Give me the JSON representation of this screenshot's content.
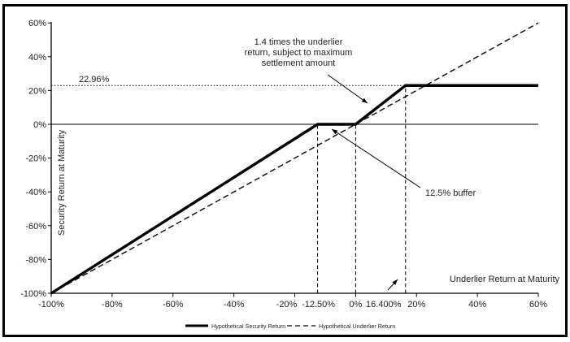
{
  "figure": {
    "background": "#ffffff",
    "border_color": "#000000",
    "line_color": "#000000",
    "text_color": "#1f1f1f"
  },
  "axes": {
    "x": {
      "title": "Underlier Return at Maturity",
      "min": -100,
      "max": 60,
      "ticks": [
        {
          "label": "-100%",
          "value": -100
        },
        {
          "label": "-80%",
          "value": -80
        },
        {
          "label": "-60%",
          "value": -60
        },
        {
          "label": "-40%",
          "value": -40
        },
        {
          "label": "-20%",
          "value": -20
        },
        {
          "label": "0%",
          "value": 0
        },
        {
          "label": "20%",
          "value": 20
        },
        {
          "label": "40%",
          "value": 40
        },
        {
          "label": "60%",
          "value": 60
        }
      ],
      "extra_labels": [
        {
          "label": "-12.50%",
          "value": -12.5
        },
        {
          "label": "16.400%",
          "value": 16.4
        }
      ]
    },
    "y": {
      "title": "Security Return at Maturity",
      "min": -100,
      "max": 60,
      "ticks": [
        {
          "label": "60%",
          "value": 60
        },
        {
          "label": "40%",
          "value": 40
        },
        {
          "label": "20%",
          "value": 20
        },
        {
          "label": "0%",
          "value": 0
        },
        {
          "label": "-20%",
          "value": -20
        },
        {
          "label": "-40%",
          "value": -40
        },
        {
          "label": "-60%",
          "value": -60
        },
        {
          "label": "-80%",
          "value": -80
        },
        {
          "label": "-100%",
          "value": -100
        }
      ]
    }
  },
  "chart_data": {
    "type": "line",
    "xlabel": "Underlier Return at Maturity",
    "ylabel": "Security Return at Maturity",
    "xlim": [
      -100,
      60
    ],
    "ylim": [
      -100,
      60
    ],
    "grid": false,
    "legend_position": "bottom-center",
    "series": [
      {
        "name": "Hypothetical Security Return",
        "style": "solid-thick",
        "points": [
          [
            -100,
            -100
          ],
          [
            -12.5,
            0
          ],
          [
            0,
            0
          ],
          [
            16.4,
            22.96
          ],
          [
            60,
            22.96
          ]
        ]
      },
      {
        "name": "Hypothetical Underlier Return",
        "style": "dashed",
        "points": [
          [
            -100,
            -100
          ],
          [
            60,
            60
          ]
        ]
      }
    ],
    "reference_lines": {
      "zero_horizontal": {
        "y": 0,
        "x_from": -100,
        "x_to": 60,
        "style": "solid-thin"
      },
      "max_settlement_dotted": {
        "y": 22.96,
        "x_from": -100,
        "x_to": 16.4,
        "style": "dotted"
      },
      "dashed_verticals": [
        {
          "x": -12.5,
          "y_from": -100,
          "y_to": 0
        },
        {
          "x": 0,
          "y_from": -100,
          "y_to": 0
        },
        {
          "x": 16.4,
          "y_from": -100,
          "y_to": 22.96
        }
      ]
    },
    "key_values": {
      "maximum_return": "22.96%",
      "buffer": "12.5%",
      "upside_participation": "1.4x",
      "cap_underlier_level": "16.400%",
      "buffer_level": "-12.50%"
    }
  },
  "annotations": {
    "max_return_label": "22.96%",
    "multiplier_note_lines": [
      "1.4 times the underlier",
      "return, subject to maximum",
      "settlement amount"
    ],
    "buffer_note": "12.5% buffer"
  },
  "legend": [
    {
      "label": "Hypothetical Security Return",
      "style": "solid-thick"
    },
    {
      "label": "Hypothetical Underlier Return",
      "style": "dashed"
    }
  ]
}
